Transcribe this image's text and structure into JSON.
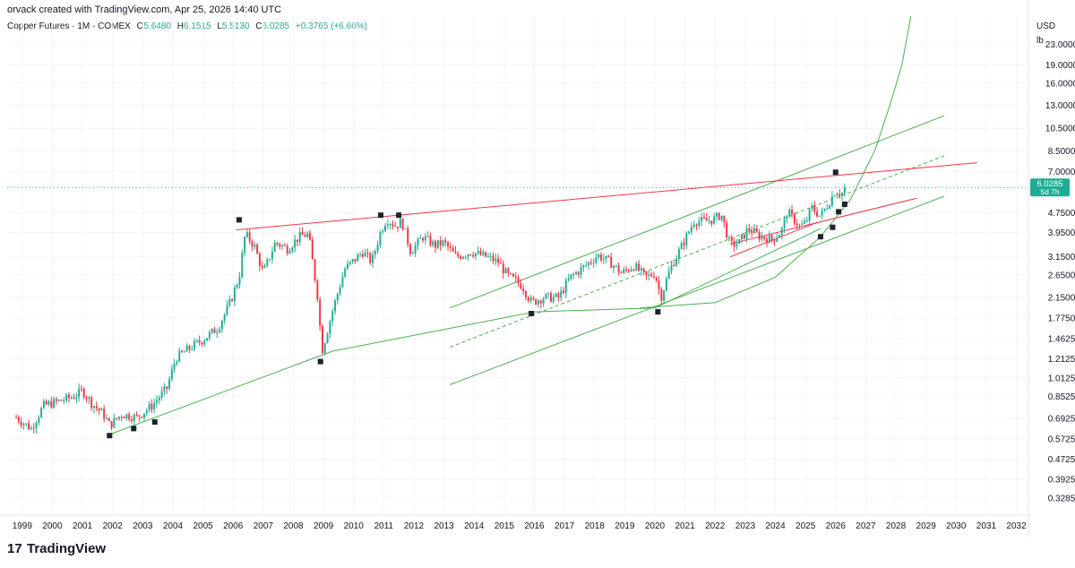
{
  "header": {
    "credit": "orvack created with TradingView.com, Apr 25, 2026 14:40 UTC",
    "symbol": "Copper Futures · 1M · COMEX",
    "o_label": "O",
    "o_value": "5.6480",
    "h_label": "H",
    "h_value": "6.1515",
    "l_label": "L",
    "l_value": "5.5130",
    "c_label": "C",
    "c_value": "6.0285",
    "change": "+0.3765 (+6.66%)"
  },
  "axis": {
    "currency": "USD",
    "unit": "lb"
  },
  "price_tag": {
    "value": "6.0285",
    "countdown": "5d 7h"
  },
  "brand": {
    "logo": "17",
    "name": "TradingView"
  },
  "colors": {
    "up": "#22ab94",
    "down": "#f23645",
    "channel": "#4caf50",
    "resistance": "#f23645",
    "tag": "#22ab94"
  },
  "chart_data": {
    "type": "candlestick",
    "title": "Copper Futures · 1M · COMEX",
    "scale": "log",
    "ylim": [
      0.28,
      30
    ],
    "y_ticks": [
      "23.0000",
      "19.0000",
      "16.0000",
      "13.0000",
      "10.5000",
      "8.5000",
      "7.0000",
      "4.7500",
      "3.9500",
      "3.1500",
      "2.6500",
      "2.1500",
      "1.7750",
      "1.4625",
      "1.2125",
      "1.0125",
      "0.8525",
      "0.6925",
      "0.5725",
      "0.4725",
      "0.3925",
      "0.3285"
    ],
    "x_ticks": [
      "1999",
      "2000",
      "2001",
      "2002",
      "2003",
      "2004",
      "2005",
      "2006",
      "2007",
      "2008",
      "2009",
      "2010",
      "2011",
      "2012",
      "2013",
      "2014",
      "2015",
      "2016",
      "2017",
      "2018",
      "2019",
      "2020",
      "2021",
      "2022",
      "2023",
      "2024",
      "2025",
      "2026",
      "2027",
      "2028",
      "2029",
      "2030",
      "2031",
      "2032"
    ],
    "last_close": 6.0285,
    "price_path": [
      [
        1998.8,
        0.7
      ],
      [
        1999.3,
        0.63
      ],
      [
        1999.7,
        0.78
      ],
      [
        2000.3,
        0.82
      ],
      [
        2000.7,
        0.85
      ],
      [
        2001.0,
        0.9
      ],
      [
        2001.3,
        0.8
      ],
      [
        2001.7,
        0.72
      ],
      [
        2001.9,
        0.65
      ],
      [
        2002.3,
        0.72
      ],
      [
        2002.8,
        0.7
      ],
      [
        2003.3,
        0.78
      ],
      [
        2003.8,
        0.92
      ],
      [
        2004.1,
        1.22
      ],
      [
        2004.6,
        1.35
      ],
      [
        2005.0,
        1.45
      ],
      [
        2005.5,
        1.62
      ],
      [
        2005.9,
        2.05
      ],
      [
        2006.2,
        2.6
      ],
      [
        2006.4,
        3.9
      ],
      [
        2006.7,
        3.5
      ],
      [
        2007.0,
        2.7
      ],
      [
        2007.4,
        3.6
      ],
      [
        2007.8,
        3.4
      ],
      [
        2008.2,
        3.8
      ],
      [
        2008.5,
        3.9
      ],
      [
        2008.8,
        2.2
      ],
      [
        2008.95,
        1.3
      ],
      [
        2009.3,
        1.9
      ],
      [
        2009.7,
        2.8
      ],
      [
        2010.3,
        3.3
      ],
      [
        2010.6,
        3.0
      ],
      [
        2010.9,
        4.0
      ],
      [
        2011.1,
        4.5
      ],
      [
        2011.4,
        4.2
      ],
      [
        2011.6,
        4.4
      ],
      [
        2011.9,
        3.3
      ],
      [
        2012.3,
        3.8
      ],
      [
        2012.7,
        3.5
      ],
      [
        2013.0,
        3.6
      ],
      [
        2013.4,
        3.15
      ],
      [
        2013.9,
        3.3
      ],
      [
        2014.4,
        3.15
      ],
      [
        2014.8,
        3.0
      ],
      [
        2015.1,
        2.65
      ],
      [
        2015.6,
        2.4
      ],
      [
        2015.9,
        2.05
      ],
      [
        2016.3,
        2.15
      ],
      [
        2016.8,
        2.15
      ],
      [
        2017.2,
        2.6
      ],
      [
        2017.7,
        2.9
      ],
      [
        2018.1,
        3.2
      ],
      [
        2018.5,
        3.0
      ],
      [
        2018.9,
        2.7
      ],
      [
        2019.3,
        2.9
      ],
      [
        2019.7,
        2.6
      ],
      [
        2020.0,
        2.7
      ],
      [
        2020.2,
        2.15
      ],
      [
        2020.5,
        2.8
      ],
      [
        2020.9,
        3.5
      ],
      [
        2021.3,
        4.4
      ],
      [
        2021.7,
        4.4
      ],
      [
        2022.0,
        4.5
      ],
      [
        2022.2,
        4.7
      ],
      [
        2022.5,
        3.5
      ],
      [
        2022.8,
        3.6
      ],
      [
        2023.1,
        4.1
      ],
      [
        2023.5,
        3.8
      ],
      [
        2023.9,
        3.7
      ],
      [
        2024.2,
        4.0
      ],
      [
        2024.4,
        4.8
      ],
      [
        2024.8,
        4.2
      ],
      [
        2025.0,
        4.3
      ],
      [
        2025.2,
        5.0
      ],
      [
        2025.5,
        4.6
      ],
      [
        2025.8,
        5.3
      ],
      [
        2026.0,
        5.9
      ],
      [
        2026.2,
        5.65
      ],
      [
        2026.3,
        6.03
      ]
    ],
    "lines": [
      {
        "name": "long-term support",
        "color": "#4caf50",
        "points": [
          [
            2001.8,
            0.59
          ],
          [
            2009.3,
            1.3
          ],
          [
            2016.0,
            1.88
          ],
          [
            2020.0,
            1.95
          ],
          [
            2025.5,
            4.1
          ]
        ]
      },
      {
        "name": "channel upper",
        "color": "#4caf50",
        "points": [
          [
            2013.2,
            1.95
          ],
          [
            2029.6,
            11.8
          ]
        ]
      },
      {
        "name": "channel lower",
        "color": "#4caf50",
        "points": [
          [
            2013.2,
            0.95
          ],
          [
            2029.6,
            5.55
          ]
        ]
      },
      {
        "name": "channel midline",
        "color": "#4caf50",
        "dashed": true,
        "points": [
          [
            2013.2,
            1.35
          ],
          [
            2029.6,
            8.1
          ]
        ]
      },
      {
        "name": "resistance",
        "color": "#f23645",
        "points": [
          [
            2006.1,
            4.05
          ],
          [
            2030.7,
            7.6
          ]
        ]
      },
      {
        "name": "wedge upper",
        "color": "#f23645",
        "points": [
          [
            2022.5,
            3.55
          ],
          [
            2028.7,
            5.45
          ]
        ]
      },
      {
        "name": "wedge lower",
        "color": "#f23645",
        "points": [
          [
            2022.5,
            3.15
          ],
          [
            2025.4,
            4.35
          ]
        ]
      },
      {
        "name": "parabolic curve",
        "color": "#4caf50",
        "points": [
          [
            2019.5,
            1.95
          ],
          [
            2022.0,
            2.05
          ],
          [
            2024.0,
            2.6
          ],
          [
            2025.5,
            3.8
          ],
          [
            2026.5,
            5.4
          ],
          [
            2027.3,
            8.5
          ],
          [
            2027.8,
            13.0
          ],
          [
            2028.2,
            19.0
          ],
          [
            2028.5,
            30.0
          ]
        ]
      }
    ],
    "markers": [
      [
        2006.2,
        4.45
      ],
      [
        2001.9,
        0.59
      ],
      [
        2002.7,
        0.63
      ],
      [
        2003.4,
        0.67
      ],
      [
        2008.9,
        1.18
      ],
      [
        2010.9,
        4.65
      ],
      [
        2011.5,
        4.65
      ],
      [
        2015.9,
        1.85
      ],
      [
        2020.1,
        1.88
      ],
      [
        2025.5,
        3.8
      ],
      [
        2025.9,
        4.15
      ],
      [
        2026.1,
        4.8
      ],
      [
        2026.3,
        5.15
      ],
      [
        2026.0,
        6.95
      ]
    ],
    "current_price_line": 6.0285
  }
}
